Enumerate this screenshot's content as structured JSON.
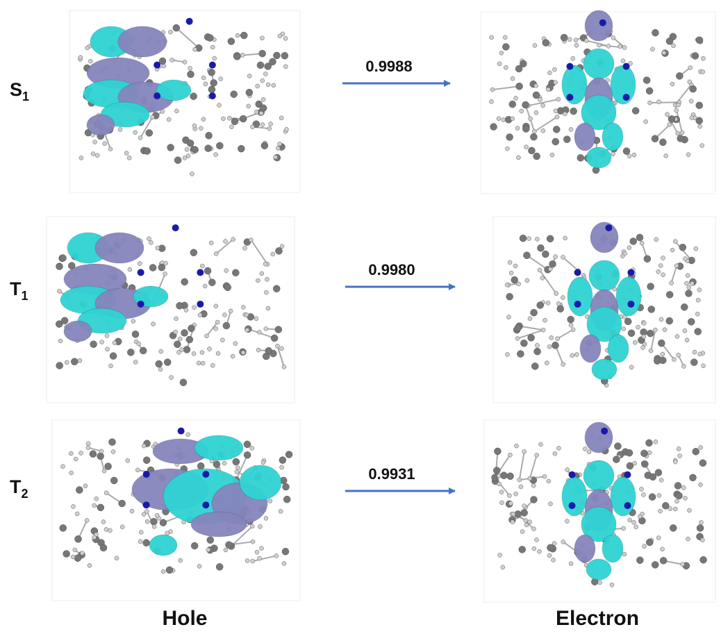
{
  "rows": [
    {
      "state": "S",
      "subscript": "1",
      "weight": "0.9988"
    },
    {
      "state": "T",
      "subscript": "1",
      "weight": "0.9980"
    },
    {
      "state": "T",
      "subscript": "2",
      "weight": "0.9931"
    }
  ],
  "columns": [
    "Hole",
    "Electron"
  ]
}
